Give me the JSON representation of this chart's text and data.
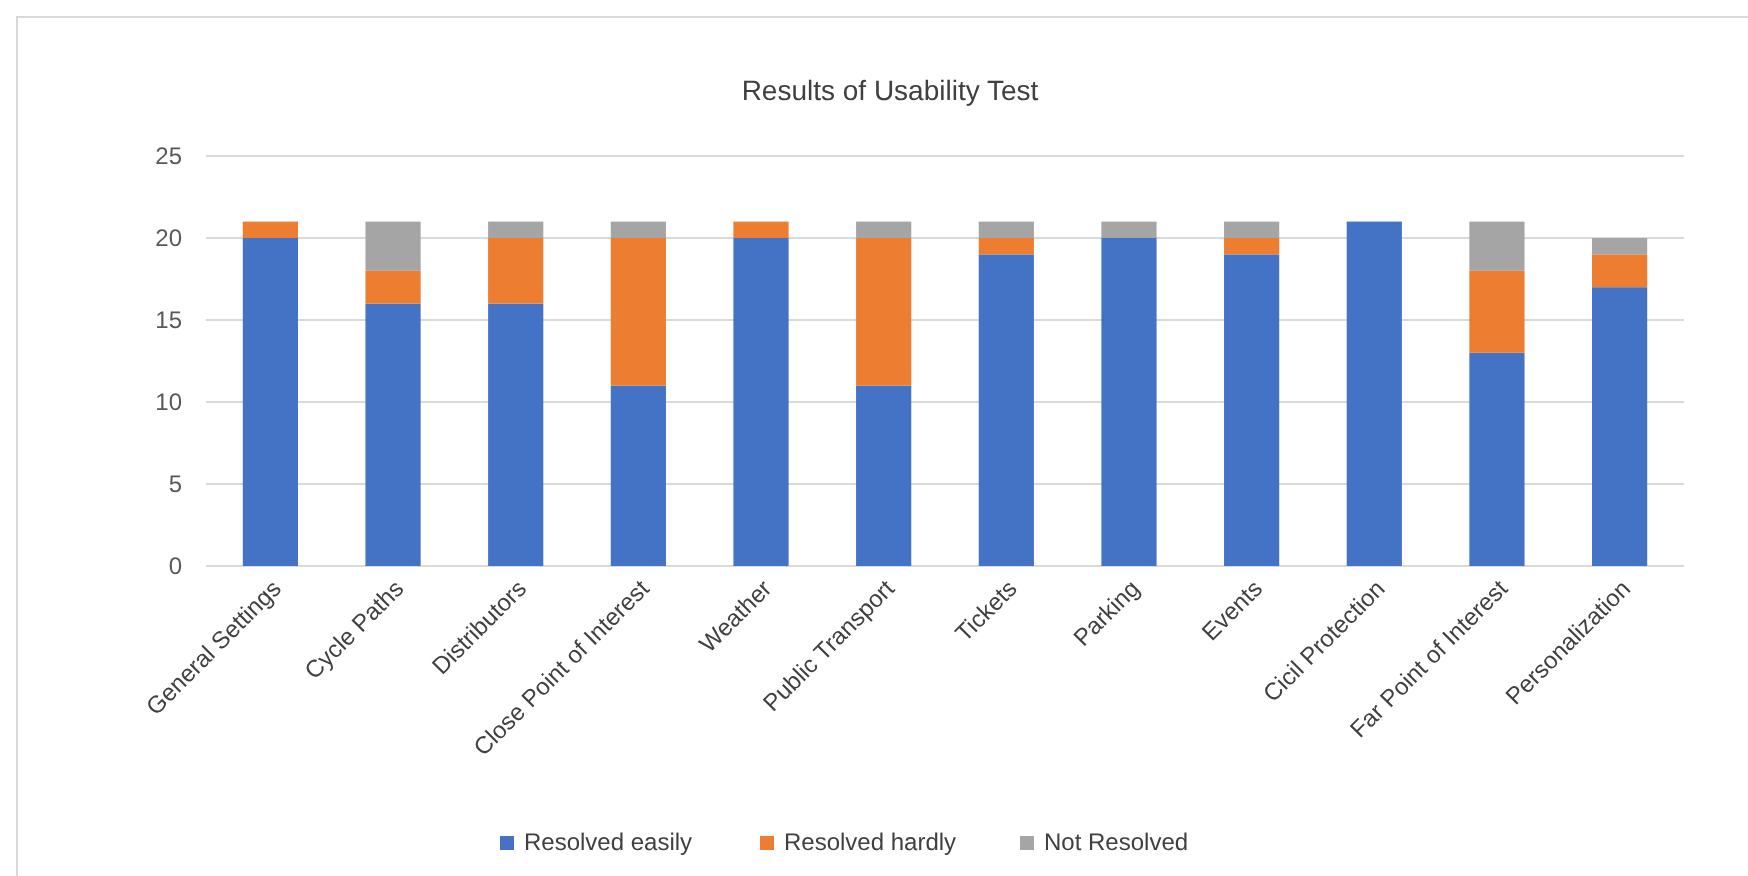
{
  "chart_data": {
    "type": "bar",
    "title": "Results of Usability Test",
    "stacked": true,
    "categories": [
      "General Settings",
      "Cycle Paths",
      "Distributors",
      "Close Point of Interest",
      "Weather",
      "Public Transport",
      "Tickets",
      "Parking",
      "Events",
      "Cicil Protection",
      "Far Point of Interest",
      "Personalization"
    ],
    "series": [
      {
        "name": "Resolved easily",
        "color": "#4472c4",
        "values": [
          20,
          16,
          16,
          11,
          20,
          11,
          19,
          20,
          19,
          21,
          13,
          17
        ]
      },
      {
        "name": "Resolved hardly",
        "color": "#ed7d31",
        "values": [
          1,
          2,
          4,
          9,
          1,
          9,
          1,
          0,
          1,
          0,
          5,
          2
        ]
      },
      {
        "name": "Not Resolved",
        "color": "#a5a5a5",
        "values": [
          0,
          3,
          1,
          1,
          0,
          1,
          1,
          1,
          1,
          0,
          3,
          1
        ]
      }
    ],
    "ylim": [
      0,
      25
    ],
    "yticks": [
      0,
      5,
      10,
      15,
      20,
      25
    ],
    "grid": "y",
    "legend": "bottom"
  }
}
